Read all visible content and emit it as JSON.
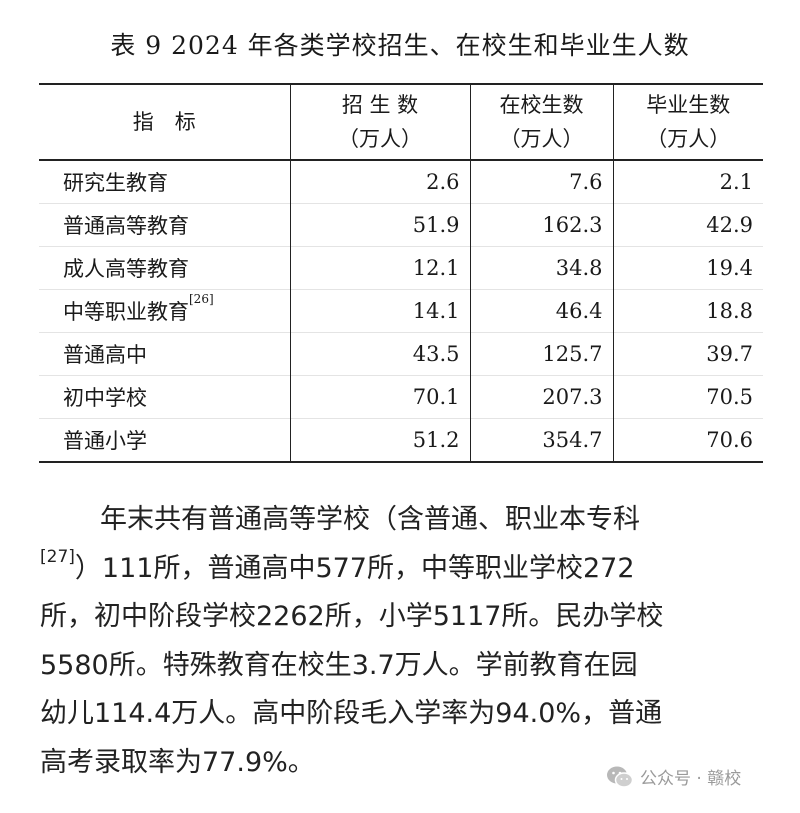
{
  "title": "表 9   2024 年各类学校招生、在校生和毕业生人数",
  "table": {
    "headers": [
      {
        "line1": "指　标",
        "line2": ""
      },
      {
        "line1": "招 生 数",
        "line2": "（万人）"
      },
      {
        "line1": "在校生数",
        "line2": "（万人）"
      },
      {
        "line1": "毕业生数",
        "line2": "（万人）"
      }
    ],
    "rows": [
      {
        "name": "研究生教育",
        "note": "",
        "values": [
          "2.6",
          "7.6",
          "2.1"
        ]
      },
      {
        "name": "普通高等教育",
        "note": "",
        "values": [
          "51.9",
          "162.3",
          "42.9"
        ]
      },
      {
        "name": "成人高等教育",
        "note": "",
        "values": [
          "12.1",
          "34.8",
          "19.4"
        ]
      },
      {
        "name": "中等职业教育",
        "note": "[26]",
        "values": [
          "14.1",
          "46.4",
          "18.8"
        ]
      },
      {
        "name": "普通高中",
        "note": "",
        "values": [
          "43.5",
          "125.7",
          "39.7"
        ]
      },
      {
        "name": "初中学校",
        "note": "",
        "values": [
          "70.1",
          "207.3",
          "70.5"
        ]
      },
      {
        "name": "普通小学",
        "note": "",
        "values": [
          "51.2",
          "354.7",
          "70.6"
        ]
      }
    ]
  },
  "paragraph": {
    "line1": "年末共有普通高等学校（含普通、职业本专科",
    "line2_note": "[27]",
    "line2": "）111所，普通高中577所，中等职业学校272",
    "line3": "所，初中阶段学校2262所，小学5117所。民办学校",
    "line4": "5580所。特殊教育在校生3.7万人。学前教育在园",
    "line5": "幼儿114.4万人。高中阶段毛入学率为94.0%，普通",
    "line6": "高考录取率为77.9%。"
  },
  "watermark": {
    "icon": "wechat-icon",
    "text": "公众号 · 赣校"
  }
}
